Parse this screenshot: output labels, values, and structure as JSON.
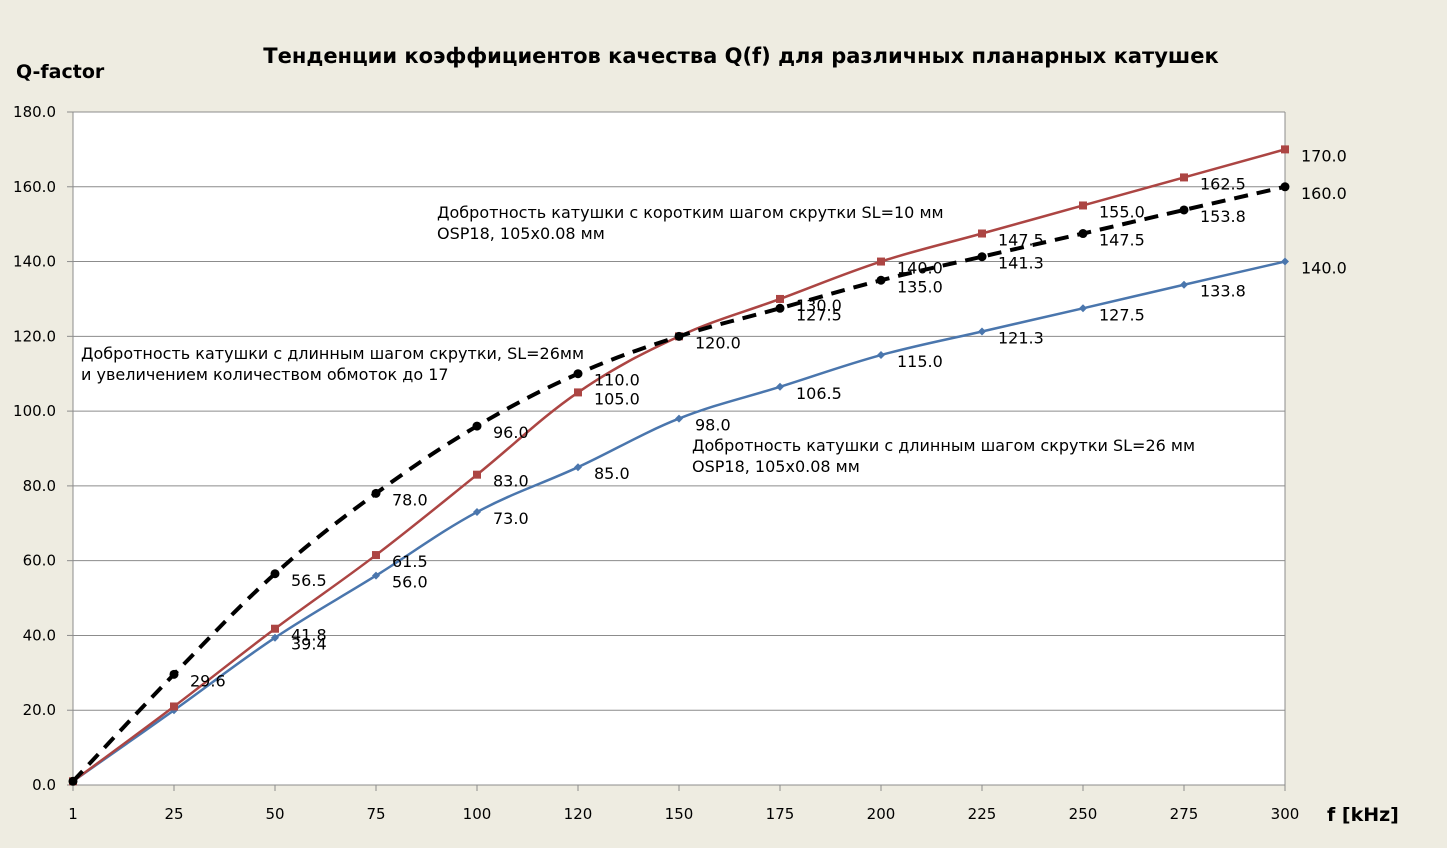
{
  "chart_data": {
    "type": "line",
    "title": "Тенденции коэффициентов качества Q(f) для различных планарных катушек",
    "xlabel": "f [kHz]",
    "ylabel": "Q-factor",
    "x": [
      "1",
      "25",
      "50",
      "75",
      "100",
      "120",
      "150",
      "175",
      "200",
      "225",
      "250",
      "275",
      "300"
    ],
    "ylim": [
      0,
      180
    ],
    "yticks": [
      "0.0",
      "20.0",
      "40.0",
      "60.0",
      "80.0",
      "100.0",
      "120.0",
      "140.0",
      "160.0",
      "180.0"
    ],
    "grid": "horizontal",
    "series": [
      {
        "color": "#4a76ad",
        "marker": "diamond",
        "style": "solid",
        "values": [
          1,
          20,
          39.4,
          56,
          73,
          85,
          98,
          106.5,
          115,
          121.3,
          127.5,
          133.8,
          140
        ],
        "labels": [
          "",
          "",
          "39.4",
          "56.0",
          "73.0",
          "85.0",
          "98.0",
          "106.5",
          "115.0",
          "121.3",
          "127.5",
          "133.8",
          "140.0"
        ]
      },
      {
        "color": "#ac4543",
        "marker": "square",
        "style": "solid",
        "values": [
          1,
          21,
          41.8,
          61.5,
          83,
          105,
          120,
          130,
          140,
          147.5,
          155,
          162.5,
          170
        ],
        "labels": [
          "",
          "",
          "41.8",
          "61.5",
          "83.0",
          "105.0",
          "120.0",
          "130.0",
          "140.0",
          "147.5",
          "155.0",
          "162.5",
          "170.0"
        ]
      },
      {
        "color": "#000000",
        "marker": "circle",
        "style": "dashed",
        "values": [
          1,
          29.6,
          56.5,
          78,
          96,
          110,
          120,
          127.5,
          135,
          141.3,
          147.5,
          153.8,
          160
        ],
        "labels": [
          "",
          "29.6",
          "56.5",
          "78.0",
          "96.0",
          "110.0",
          "",
          "127.5",
          "135.0",
          "141.3",
          "147.5",
          "153.8",
          "160.0"
        ]
      }
    ],
    "annotations": [
      {
        "lines": [
          "Добротность катушки с коротким шагом скрутки SL=10 мм",
          "OSP18, 105x0.08 мм"
        ]
      },
      {
        "lines": [
          "Добротность катушки с длинным шагом скрутки, SL=26мм",
          "и увеличением количеством обмоток до 17"
        ]
      },
      {
        "lines": [
          "Добротность катушки с длинным шагом скрутки SL=26 мм",
          "OSP18, 105x0.08 мм"
        ]
      }
    ]
  }
}
